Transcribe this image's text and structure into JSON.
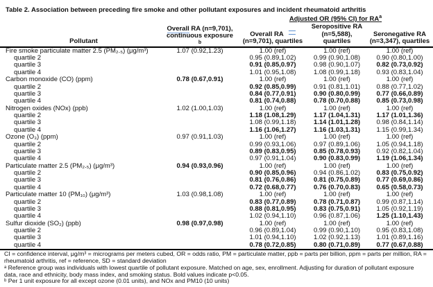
{
  "colors": {
    "background": "#ffffff",
    "text": "#111111",
    "rule": "#000000",
    "spellcheck_underline": "#7aa3dc",
    "grammar_mark": "#5b8fd0"
  },
  "title": "Table 2. Association between preceding fire smoke and other pollutant exposures and incident rheumatoid arthritis",
  "header": {
    "spanner": "Adjusted OR (95% CI) for RA",
    "spanner_sup": "a",
    "pollutant": "Pollutant",
    "col2": {
      "line1_word": "Overall",
      "line1_rest": " RA (n=9,701),",
      "line2": "continuous exposure",
      "sup": "b"
    },
    "col3": {
      "line1": "Overall RA",
      "line2": "(n=9,701), quartiles"
    },
    "col4": {
      "line1": "Seropositive RA",
      "line2": "(n=5,588), quartiles"
    },
    "col5": {
      "line1": "Seronegative RA",
      "line2": "(n=3,347), quartiles"
    }
  },
  "table": {
    "rows": [
      {
        "label": "Fire smoke particulate matter 2.5 (PM₂.₅) (μg/m³)",
        "indent": false,
        "cells": [
          {
            "text": "1.07 (0.92,1.23)",
            "bold": false
          },
          {
            "text": "1.00 (ref)",
            "bold": false
          },
          {
            "text": "1.00 (ref)",
            "bold": false
          },
          {
            "text": "1.00 (ref)",
            "bold": false
          }
        ]
      },
      {
        "label": "quartile 2",
        "indent": true,
        "cells": [
          {
            "text": "",
            "bold": false
          },
          {
            "text": "0.95 (0.89,1.02)",
            "bold": false
          },
          {
            "text": "0.99 (0.90,1.08)",
            "bold": false
          },
          {
            "text": "0.90 (0.80,1.00)",
            "bold": false
          }
        ]
      },
      {
        "label": "quartile 3",
        "indent": true,
        "cells": [
          {
            "text": "",
            "bold": false
          },
          {
            "text": "0.91 (0.85,0.97)",
            "bold": true
          },
          {
            "text": "0.98 (0.90,1.07)",
            "bold": false
          },
          {
            "text": "0.82 (0.73,0.92)",
            "bold": true
          }
        ]
      },
      {
        "label": "quartile 4",
        "indent": true,
        "cells": [
          {
            "text": "",
            "bold": false
          },
          {
            "text": "1.01 (0.95,1.08)",
            "bold": false
          },
          {
            "text": "1.08 (0.99,1.18)",
            "bold": false
          },
          {
            "text": "0.93 (0.83,1.04)",
            "bold": false
          }
        ]
      },
      {
        "label": "Carbon monoxide (CO) (ppm)",
        "indent": false,
        "cells": [
          {
            "text": "0.78 (0.67,0.91)",
            "bold": true
          },
          {
            "text": "1.00 (ref)",
            "bold": false
          },
          {
            "text": "1.00 (ref)",
            "bold": false
          },
          {
            "text": "1.00 (ref)",
            "bold": false
          }
        ]
      },
      {
        "label": "quartile 2",
        "indent": true,
        "cells": [
          {
            "text": "",
            "bold": false
          },
          {
            "text": "0.92 (0.85,0.99)",
            "bold": true
          },
          {
            "text": "0.91 (0.81,1.01)",
            "bold": false
          },
          {
            "text": "0.88 (0.77,1.02)",
            "bold": false
          }
        ]
      },
      {
        "label": "quartile 3",
        "indent": true,
        "cells": [
          {
            "text": "",
            "bold": false
          },
          {
            "text": "0.84 (0.77,0.91)",
            "bold": true
          },
          {
            "text": "0.90 (0.80,0.99)",
            "bold": true
          },
          {
            "text": "0.77 (0.66,0.89)",
            "bold": true
          }
        ]
      },
      {
        "label": "quartile 4",
        "indent": true,
        "cells": [
          {
            "text": "",
            "bold": false
          },
          {
            "text": "0.81 (0.74,0.88)",
            "bold": true
          },
          {
            "text": "0.78 (0.70,0.88)",
            "bold": true
          },
          {
            "text": "0.85 (0.73,0.98)",
            "bold": true
          }
        ]
      },
      {
        "label": "Nitrogen oxides (NOx) (ppb)",
        "indent": false,
        "cells": [
          {
            "text": "1.02 (1.00,1.03)",
            "bold": false
          },
          {
            "text": "1.00 (ref)",
            "bold": false
          },
          {
            "text": "1.00 (ref)",
            "bold": false
          },
          {
            "text": "1.00 (ref)",
            "bold": false
          }
        ]
      },
      {
        "label": "quartile 2",
        "indent": true,
        "cells": [
          {
            "text": "",
            "bold": false
          },
          {
            "text": "1.18 (1.08,1.29)",
            "bold": true
          },
          {
            "text": "1.17 (1.04,1.31)",
            "bold": true
          },
          {
            "text": "1.17 (1.01,1.36)",
            "bold": true
          }
        ]
      },
      {
        "label": "quartile 3",
        "indent": true,
        "cells": [
          {
            "text": "",
            "bold": false
          },
          {
            "text": "1.08 (0.99,1.18)",
            "bold": false
          },
          {
            "text": "1.14 (1.01,1.28)",
            "bold": true
          },
          {
            "text": "0.98 (0.84,1.14)",
            "bold": false
          }
        ]
      },
      {
        "label": "quartile 4",
        "indent": true,
        "cells": [
          {
            "text": "",
            "bold": false
          },
          {
            "text": "1.16 (1.06,1.27)",
            "bold": true
          },
          {
            "text": "1.16 (1.03,1.31)",
            "bold": true
          },
          {
            "text": "1.15 (0.99,1.34)",
            "bold": false
          }
        ]
      },
      {
        "label": "Ozone (O₃) (ppm)",
        "indent": false,
        "cells": [
          {
            "text": "0.97 (0.91,1.03)",
            "bold": false
          },
          {
            "text": "1.00 (ref)",
            "bold": false
          },
          {
            "text": "1.00 (ref)",
            "bold": false
          },
          {
            "text": "1.00 (ref)",
            "bold": false
          }
        ]
      },
      {
        "label": "quartile 2",
        "indent": true,
        "cells": [
          {
            "text": "",
            "bold": false
          },
          {
            "text": "0.99 (0.93,1.06)",
            "bold": false
          },
          {
            "text": "0.97 (0.89,1.06)",
            "bold": false
          },
          {
            "text": "1.05 (0.94,1.18)",
            "bold": false
          }
        ]
      },
      {
        "label": "quartile 3",
        "indent": true,
        "cells": [
          {
            "text": "",
            "bold": false
          },
          {
            "text": "0.89 (0.83,0.95)",
            "bold": true
          },
          {
            "text": "0.85 (0.78,0.93)",
            "bold": true
          },
          {
            "text": "0.92 (0.82,1.04)",
            "bold": false
          }
        ]
      },
      {
        "label": "quartile 4",
        "indent": true,
        "cells": [
          {
            "text": "",
            "bold": false
          },
          {
            "text": "0.97 (0.91,1.04)",
            "bold": false
          },
          {
            "text": "0.90 (0.83,0.99)",
            "bold": true
          },
          {
            "text": "1.19 (1.06,1.34)",
            "bold": true
          }
        ]
      },
      {
        "label": "Particulate matter 2.5 (PM₂.₅) (μg/m³)",
        "indent": false,
        "cells": [
          {
            "text": "0.94 (0.93,0.96)",
            "bold": true
          },
          {
            "text": "1.00 (ref)",
            "bold": false
          },
          {
            "text": "1.00 (ref)",
            "bold": false
          },
          {
            "text": "1.00 (ref)",
            "bold": false
          }
        ]
      },
      {
        "label": "quartile 2",
        "indent": true,
        "cells": [
          {
            "text": "",
            "bold": false
          },
          {
            "text": "0.90 (0.85,0.96)",
            "bold": true
          },
          {
            "text": "0.94 (0.86,1.02)",
            "bold": false
          },
          {
            "text": "0.83 (0.75,0.92)",
            "bold": true
          }
        ]
      },
      {
        "label": "quartile 3",
        "indent": true,
        "cells": [
          {
            "text": "",
            "bold": false
          },
          {
            "text": "0.81 (0.76,0.86)",
            "bold": true
          },
          {
            "text": "0.81 (0.75,0.89)",
            "bold": true
          },
          {
            "text": "0.77 (0.69,0.86)",
            "bold": true
          }
        ]
      },
      {
        "label": "quartile 4",
        "indent": true,
        "cells": [
          {
            "text": "",
            "bold": false
          },
          {
            "text": "0.72 (0.68,0.77)",
            "bold": true
          },
          {
            "text": "0.76 (0.70,0.83)",
            "bold": true
          },
          {
            "text": "0.65 (0.58,0.73)",
            "bold": true
          }
        ]
      },
      {
        "label": "Particulate matter 10 (PM₁₀) (μg/m³)",
        "indent": false,
        "cells": [
          {
            "text": "1.03 (0.98,1.08)",
            "bold": false
          },
          {
            "text": "1.00 (ref)",
            "bold": false
          },
          {
            "text": "1.00 (ref)",
            "bold": false
          },
          {
            "text": "1.00 (ref)",
            "bold": false
          }
        ]
      },
      {
        "label": "quartile 2",
        "indent": true,
        "cells": [
          {
            "text": "",
            "bold": false
          },
          {
            "text": "0.83 (0.77,0.89)",
            "bold": true
          },
          {
            "text": "0.78 (0.71,0.87)",
            "bold": true
          },
          {
            "text": "0.99 (0.87,1.14)",
            "bold": false
          }
        ]
      },
      {
        "label": "quartile 3",
        "indent": true,
        "cells": [
          {
            "text": "",
            "bold": false
          },
          {
            "text": "0.88 (0.81,0.95)",
            "bold": true
          },
          {
            "text": "0.83 (0.75,0.91)",
            "bold": true
          },
          {
            "text": "1.05 (0.92,1.19)",
            "bold": false
          }
        ]
      },
      {
        "label": "quartile 4",
        "indent": true,
        "cells": [
          {
            "text": "",
            "bold": false
          },
          {
            "text": "1.02 (0.94,1.10)",
            "bold": false
          },
          {
            "text": "0.96 (0.87,1.06)",
            "bold": false
          },
          {
            "text": "1.25 (1.10,1.43)",
            "bold": true
          }
        ]
      },
      {
        "label": "Sulfur dioxide (SO₂) (ppb)",
        "indent": false,
        "cells": [
          {
            "text": "0.98 (0.97,0.98)",
            "bold": true
          },
          {
            "text": "1.00 (ref)",
            "bold": false
          },
          {
            "text": "1.00 (ref)",
            "bold": false
          },
          {
            "text": "1.00 (ref)",
            "bold": false
          }
        ]
      },
      {
        "label": "quartile 2",
        "indent": true,
        "cells": [
          {
            "text": "",
            "bold": false
          },
          {
            "text": "0.96 (0.89,1.04)",
            "bold": false
          },
          {
            "text": "0.99 (0.90,1.10)",
            "bold": false
          },
          {
            "text": "0.95 (0.83,1.08)",
            "bold": false
          }
        ]
      },
      {
        "label": "quartile 3",
        "indent": true,
        "cells": [
          {
            "text": "",
            "bold": false
          },
          {
            "text": "1.01 (0.94,1.10)",
            "bold": false
          },
          {
            "text": "1.02 (0.92,1.13)",
            "bold": false
          },
          {
            "text": "1.01 (0.89,1.16)",
            "bold": false
          }
        ]
      },
      {
        "label": "quartile 4",
        "indent": true,
        "cells": [
          {
            "text": "",
            "bold": false
          },
          {
            "text": "0.78 (0.72,0.85)",
            "bold": true
          },
          {
            "text": "0.80 (0.71,0.89)",
            "bold": true
          },
          {
            "text": "0.77 (0.67,0.88)",
            "bold": true
          }
        ]
      }
    ]
  },
  "footnotes": [
    "CI = confidence interval, μg/m³ = micrograms per meters cubed, OR = odds ratio, PM = particulate matter, ppb = parts per billion, ppm = parts per million, RA = rheumatoid arthritis, ref = reference, SD = standard deviation",
    "ᵃ Reference group was individuals with lowest quartile of pollutant exposure. Matched on age, sex, enrollment. Adjusting for duration of pollutant exposure data, race and ethnicity, body mass index, and smoking status. Bold values indicate p<0.05.",
    "ᵇ Per 1 unit exposure for all except ozone (0.01 units), and NOx and PM10 (10 units)"
  ]
}
